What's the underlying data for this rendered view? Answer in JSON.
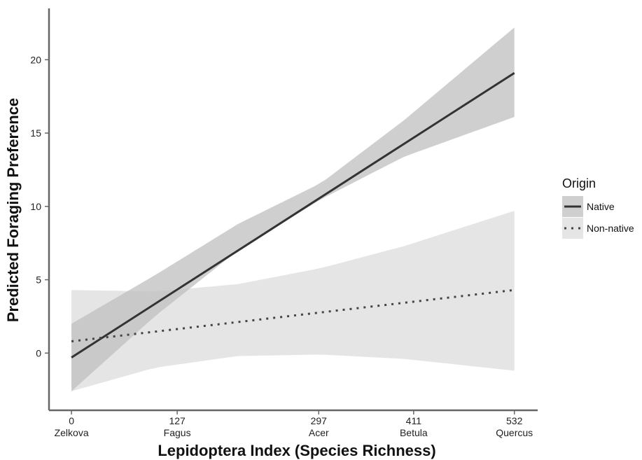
{
  "chart_data": {
    "type": "line",
    "xlabel": "Lepidoptera Index (Species Richness)",
    "ylabel": "Predicted Foraging Preference",
    "xlim": [
      -27,
      560
    ],
    "ylim": [
      -3.9,
      23.5
    ],
    "x_ticks": [
      {
        "value": 0,
        "label": "0",
        "species": "Zelkova"
      },
      {
        "value": 127,
        "label": "127",
        "species": "Fagus"
      },
      {
        "value": 297,
        "label": "297",
        "species": "Acer"
      },
      {
        "value": 411,
        "label": "411",
        "species": "Betula"
      },
      {
        "value": 532,
        "label": "532",
        "species": "Quercus"
      }
    ],
    "y_ticks": [
      0,
      5,
      10,
      15,
      20
    ],
    "grid": false,
    "legend": {
      "title": "Origin",
      "position": "right",
      "entries": [
        "Native",
        "Non-native"
      ]
    },
    "series": [
      {
        "name": "Native",
        "line_style": "solid",
        "color": "#333333",
        "ribbon_color": "#bfbfbf",
        "x": [
          0,
          532
        ],
        "y": [
          -0.3,
          19.1
        ],
        "ci_x": [
          0,
          100,
          200,
          300,
          400,
          532
        ],
        "ci_lower": [
          -2.6,
          2.5,
          7.0,
          10.5,
          13.4,
          16.1
        ],
        "ci_upper": [
          2.0,
          5.3,
          8.8,
          11.6,
          15.9,
          22.2
        ]
      },
      {
        "name": "Non-native",
        "line_style": "dotted",
        "color": "#444444",
        "ribbon_color": "#dcdcdc",
        "x": [
          0,
          532
        ],
        "y": [
          0.8,
          4.3
        ],
        "ci_x": [
          0,
          100,
          200,
          300,
          400,
          532
        ],
        "ci_lower": [
          -2.6,
          -1.0,
          -0.2,
          -0.1,
          -0.4,
          -1.2
        ],
        "ci_upper": [
          4.3,
          4.2,
          4.7,
          5.8,
          7.3,
          9.7
        ]
      }
    ]
  }
}
